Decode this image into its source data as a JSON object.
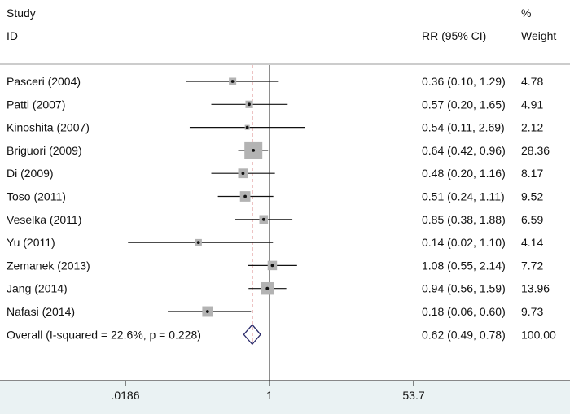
{
  "chart_data": {
    "type": "forest",
    "scale": "log",
    "xlim": [
      0.0186,
      53.7
    ],
    "xticks": [
      {
        "value": 0.0186,
        "label": ".0186"
      },
      {
        "value": 1,
        "label": "1"
      },
      {
        "value": 53.7,
        "label": "53.7"
      }
    ],
    "headers": {
      "study_line1": "Study",
      "study_line2": "ID",
      "rr": "RR (95% CI)",
      "weight_line1": "%",
      "weight_line2": "Weight"
    },
    "studies": [
      {
        "label": "Pasceri (2004)",
        "rr": 0.36,
        "lo": 0.1,
        "hi": 1.29,
        "weight": 4.78,
        "ci_text": "0.36 (0.10, 1.29)",
        "weight_text": "4.78"
      },
      {
        "label": "Patti (2007)",
        "rr": 0.57,
        "lo": 0.2,
        "hi": 1.65,
        "weight": 4.91,
        "ci_text": "0.57 (0.20, 1.65)",
        "weight_text": "4.91"
      },
      {
        "label": "Kinoshita (2007)",
        "rr": 0.54,
        "lo": 0.11,
        "hi": 2.69,
        "weight": 2.12,
        "ci_text": "0.54 (0.11, 2.69)",
        "weight_text": "2.12"
      },
      {
        "label": "Briguori (2009)",
        "rr": 0.64,
        "lo": 0.42,
        "hi": 0.96,
        "weight": 28.36,
        "ci_text": "0.64 (0.42, 0.96)",
        "weight_text": "28.36"
      },
      {
        "label": "Di (2009)",
        "rr": 0.48,
        "lo": 0.2,
        "hi": 1.16,
        "weight": 8.17,
        "ci_text": "0.48 (0.20, 1.16)",
        "weight_text": "8.17"
      },
      {
        "label": "Toso (2011)",
        "rr": 0.51,
        "lo": 0.24,
        "hi": 1.11,
        "weight": 9.52,
        "ci_text": "0.51 (0.24, 1.11)",
        "weight_text": "9.52"
      },
      {
        "label": "Veselka (2011)",
        "rr": 0.85,
        "lo": 0.38,
        "hi": 1.88,
        "weight": 6.59,
        "ci_text": "0.85 (0.38, 1.88)",
        "weight_text": "6.59"
      },
      {
        "label": "Yu (2011)",
        "rr": 0.14,
        "lo": 0.02,
        "hi": 1.1,
        "weight": 4.14,
        "ci_text": "0.14 (0.02, 1.10)",
        "weight_text": "4.14"
      },
      {
        "label": "Zemanek (2013)",
        "rr": 1.08,
        "lo": 0.55,
        "hi": 2.14,
        "weight": 7.72,
        "ci_text": "1.08 (0.55, 2.14)",
        "weight_text": "7.72"
      },
      {
        "label": "Jang (2014)",
        "rr": 0.94,
        "lo": 0.56,
        "hi": 1.59,
        "weight": 13.96,
        "ci_text": "0.94 (0.56, 1.59)",
        "weight_text": "13.96"
      },
      {
        "label": "Nafasi (2014)",
        "rr": 0.18,
        "lo": 0.06,
        "hi": 0.6,
        "weight": 9.73,
        "ci_text": "0.18 (0.06, 0.60)",
        "weight_text": "9.73"
      }
    ],
    "overall": {
      "label": "Overall  (I-squared = 22.6%, p = 0.228)",
      "rr": 0.62,
      "lo": 0.49,
      "hi": 0.78,
      "weight": 100.0,
      "ci_text": "0.62 (0.49, 0.78)",
      "weight_text": "100.00"
    },
    "colors": {
      "box": "#b3b3b3",
      "ci_line": "#111111",
      "null_line": "#111111",
      "overall_line": "#c03030",
      "diamond": "#2a2a6a",
      "axis_band": "#eaf2f3",
      "separator": "#999999"
    }
  }
}
